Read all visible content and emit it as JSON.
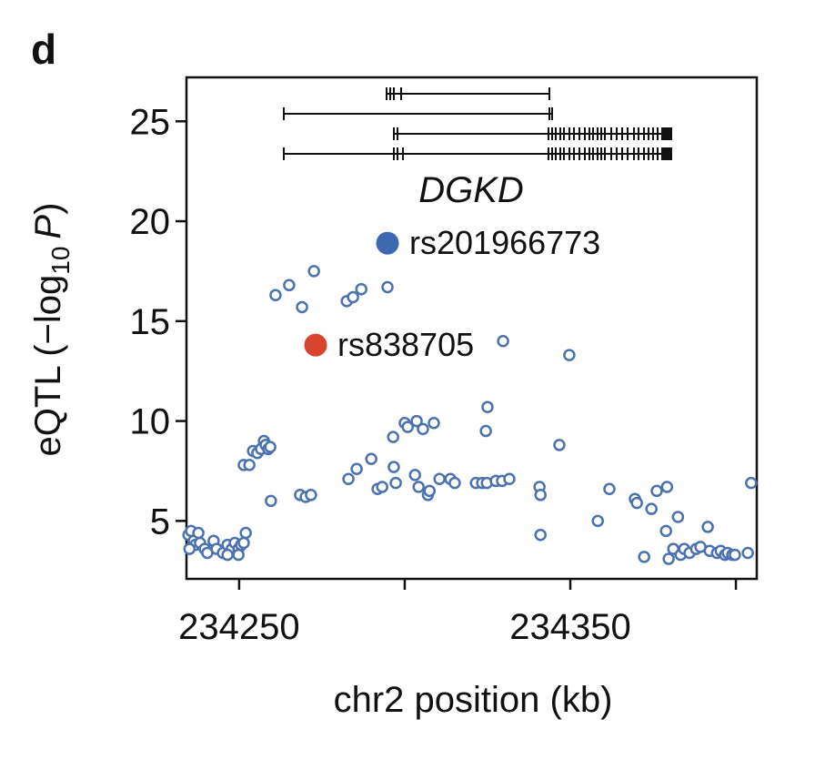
{
  "panel_label": "d",
  "chart_data": {
    "type": "scatter",
    "xlabel": "chr2 position (kb)",
    "ylabel": {
      "text": "eQTL (−log",
      "subscript": "10",
      "variable": "P",
      "close": ")"
    },
    "gene_label": "DGKD",
    "xlim": [
      234234.1,
      234406.3
    ],
    "ylim": [
      2.1,
      27.2
    ],
    "xticks": [
      234250,
      234350
    ],
    "xticks_minor": [
      234300,
      234400
    ],
    "yticks": [
      5,
      10,
      15,
      20,
      25
    ],
    "color": "#4a72b0",
    "x": [
      234234.7,
      234235.5,
      234236.3,
      234236.8,
      234235.0,
      234237.7,
      234238.2,
      234239.6,
      234240.4,
      234242.3,
      234243.2,
      234245.1,
      234246.5,
      234247.8,
      234248.7,
      234249.8,
      234250.6,
      234251.4,
      234246.5,
      234249.8,
      234252.0,
      234251.4,
      234253.1,
      234254.2,
      234255.5,
      234256.6,
      234257.5,
      234258.0,
      234258.8,
      234259.4,
      234259.6,
      234261.0,
      234265.1,
      234269.0,
      234272.6,
      234268.4,
      234270.1,
      234271.7,
      234283.0,
      234285.5,
      234289.9,
      234282.5,
      234284.4,
      234286.9,
      234294.8,
      234291.8,
      234293.2,
      234296.5,
      234296.7,
      234297.3,
      234300.0,
      234300.9,
      234303.6,
      234305.5,
      234308.8,
      234303.1,
      234304.2,
      234307.0,
      234307.5,
      234310.5,
      234313.8,
      234315.1,
      234321.5,
      234323.4,
      234324.8,
      234327.5,
      234329.4,
      234331.6,
      234325.0,
      234324.5,
      234329.7,
      234349.7,
      234340.7,
      234341.0,
      234341.0,
      234346.7,
      234358.3,
      234361.8,
      234369.5,
      234370.1,
      234372.3,
      234374.5,
      234376.1,
      234379.2,
      234378.9,
      234379.7,
      234381.1,
      234382.5,
      234383.3,
      234384.4,
      234386.0,
      234388.0,
      234389.3,
      234391.5,
      234392.1,
      234394.3,
      234395.4,
      234396.7,
      234397.5,
      234398.9,
      234399.7,
      234403.6,
      234404.6
    ],
    "y": [
      4.3,
      4.5,
      4.0,
      3.8,
      3.6,
      4.4,
      3.9,
      3.6,
      3.4,
      4.0,
      3.6,
      3.4,
      3.8,
      3.6,
      3.9,
      3.6,
      3.8,
      3.9,
      3.3,
      3.3,
      4.4,
      7.8,
      7.8,
      8.5,
      8.4,
      8.6,
      9.0,
      8.8,
      8.6,
      8.7,
      6.0,
      16.3,
      16.8,
      15.7,
      17.5,
      6.3,
      6.2,
      6.3,
      7.1,
      7.6,
      8.1,
      16.0,
      16.2,
      16.6,
      16.7,
      6.6,
      6.7,
      9.2,
      7.7,
      6.9,
      9.9,
      9.7,
      10.0,
      9.6,
      9.9,
      7.3,
      6.7,
      6.3,
      6.5,
      7.1,
      7.1,
      6.9,
      6.9,
      6.9,
      6.9,
      7.0,
      7.0,
      7.1,
      10.7,
      9.5,
      14.0,
      13.3,
      6.7,
      6.3,
      4.3,
      8.8,
      5.0,
      6.6,
      6.1,
      5.9,
      3.2,
      5.6,
      6.5,
      6.7,
      4.5,
      3.1,
      3.6,
      5.2,
      3.3,
      3.6,
      3.4,
      3.6,
      3.7,
      4.7,
      3.5,
      3.4,
      3.5,
      3.3,
      3.4,
      3.3,
      3.3,
      3.4,
      6.9
    ],
    "highlights": [
      {
        "label": "rs201966773",
        "x": 234294.8,
        "y": 18.9,
        "color": "#3c68b0"
      },
      {
        "label": "rs838705",
        "x": 234273.1,
        "y": 13.8,
        "color": "#d9442f"
      }
    ]
  }
}
